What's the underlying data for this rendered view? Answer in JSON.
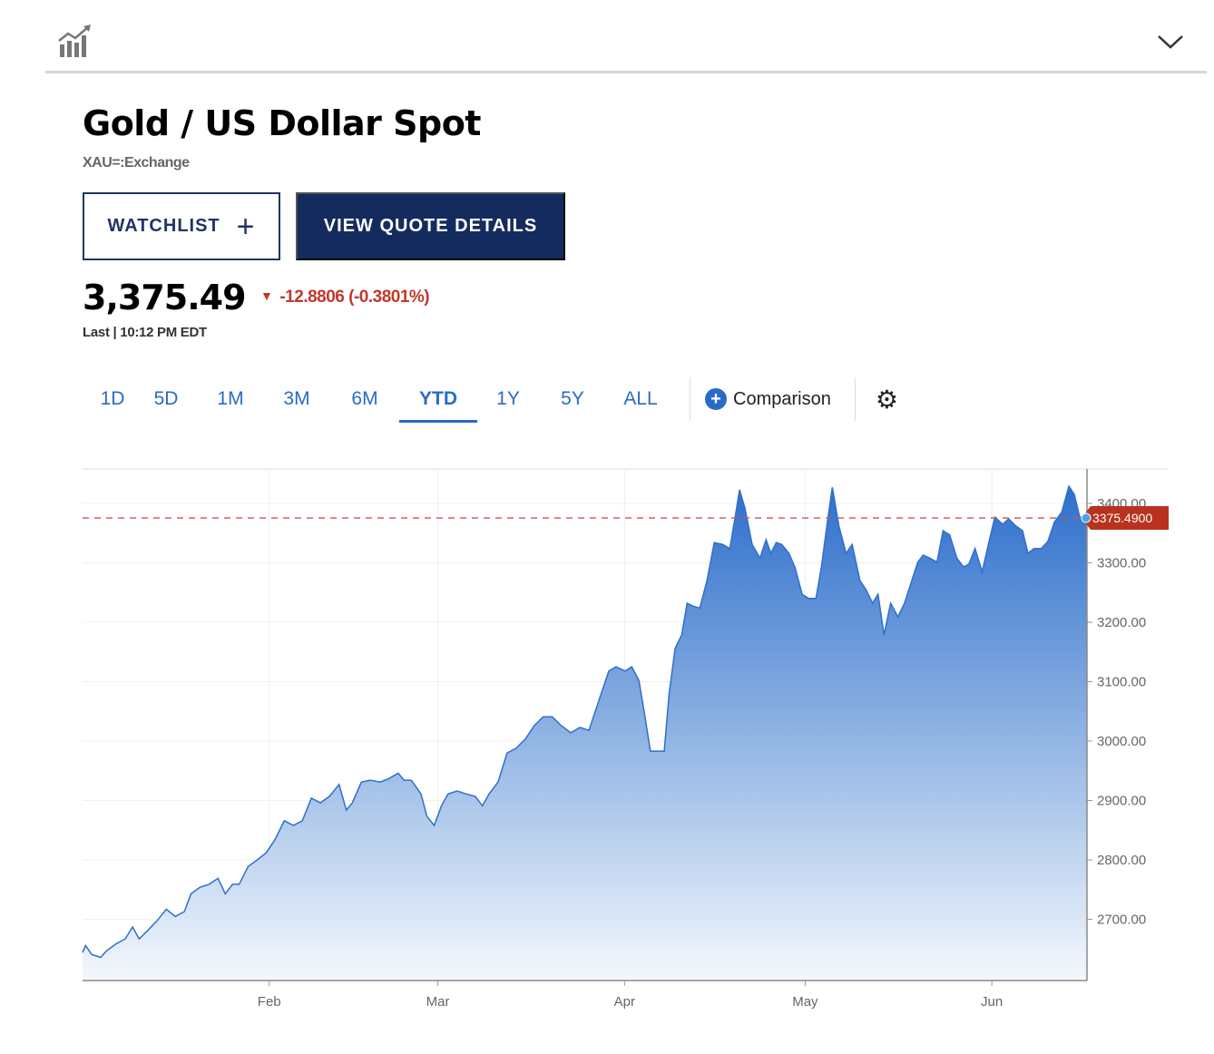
{
  "header": {
    "icon": "chart-growth-icon",
    "collapse_icon": "chevron-down-icon"
  },
  "quote": {
    "title": "Gold / US Dollar Spot",
    "symbol": "XAU=:Exchange",
    "watchlist_label": "WATCHLIST",
    "watchlist_plus": "+",
    "view_quote_label": "VIEW QUOTE DETAILS",
    "price": "3,375.49",
    "change_arrow": "▼",
    "change": "-12.8806 (-0.3801%)",
    "last_label": "Last | 10:12 PM EDT"
  },
  "tabs": [
    {
      "label": "1D"
    },
    {
      "label": "5D"
    },
    {
      "label": "1M"
    },
    {
      "label": "3M"
    },
    {
      "label": "6M"
    },
    {
      "label": "YTD",
      "active": true
    },
    {
      "label": "1Y"
    },
    {
      "label": "5Y"
    },
    {
      "label": "ALL"
    }
  ],
  "comparison": {
    "icon": "+",
    "label": "Comparison"
  },
  "settings": {
    "icon": "⚙"
  },
  "colors": {
    "accent": "#2a6ac7",
    "navy": "#142b5e",
    "down": "#c0392b",
    "area": "#3a7bd5"
  },
  "chart_data": {
    "type": "area",
    "title": "Gold / US Dollar Spot YTD",
    "xlabel": "",
    "ylabel": "",
    "x_unit": "day of year (0 = Jan 1)",
    "xlim": [
      0,
      166.8
    ],
    "ylim": [
      2597,
      3458
    ],
    "grid": true,
    "x_ticks": [
      {
        "label": "Feb",
        "x": 31
      },
      {
        "label": "Mar",
        "x": 59
      },
      {
        "label": "Apr",
        "x": 90
      },
      {
        "label": "May",
        "x": 120
      },
      {
        "label": "Jun",
        "x": 151
      }
    ],
    "y_ticks": [
      {
        "label": "3400.00",
        "y": 3400
      },
      {
        "label": "3300.00",
        "y": 3300
      },
      {
        "label": "3200.00",
        "y": 3200
      },
      {
        "label": "3100.00",
        "y": 3100
      },
      {
        "label": "3000.00",
        "y": 3000
      },
      {
        "label": "2900.00",
        "y": 2900
      },
      {
        "label": "2800.00",
        "y": 2800
      },
      {
        "label": "2700.00",
        "y": 2700
      }
    ],
    "last_value": 3375.49,
    "last_label": "3375.4900",
    "x": [
      0,
      0.5,
      1.5,
      3,
      4,
      5.6,
      7.1,
      8.3,
      9.4,
      10.9,
      12.4,
      13.9,
      15.4,
      16.9,
      18,
      19.5,
      21,
      22.5,
      23.7,
      24.9,
      26,
      27.5,
      29,
      30.5,
      32,
      33.5,
      35,
      36.5,
      38,
      39.5,
      41,
      42.6,
      43.8,
      44.8,
      46.3,
      47.8,
      49.4,
      50.9,
      52.4,
      53.4,
      54.6,
      56.2,
      57.2,
      58.4,
      59.6,
      60.7,
      62.2,
      63.7,
      65.2,
      66.4,
      67.5,
      69,
      70.5,
      72,
      73.5,
      75,
      76.5,
      78,
      79.5,
      81.1,
      82.6,
      84.1,
      85.6,
      87.4,
      88.6,
      90.1,
      91.2,
      92.4,
      93.4,
      94.3,
      96.6,
      97.4,
      98.4,
      99.5,
      100.4,
      101.4,
      102.5,
      103.7,
      104.9,
      106.3,
      107.5,
      108.5,
      109.1,
      110,
      111.2,
      112.5,
      113.5,
      114.3,
      115.2,
      116.1,
      117.3,
      118.3,
      119.5,
      120.6,
      121.8,
      122.7,
      123.6,
      124.5,
      125.6,
      126.8,
      127.8,
      129.1,
      130.1,
      131.2,
      132.1,
      133.1,
      134.2,
      135.4,
      136.5,
      137.7,
      138.7,
      139.6,
      140.7,
      141.9,
      142.9,
      144,
      145.2,
      146.3,
      147.2,
      148.2,
      149.4,
      150.5,
      151.5,
      152.8,
      153.8,
      155,
      156.1,
      157,
      158,
      159.2,
      160.3,
      161.4,
      162.6,
      163.8,
      164.7,
      165.6,
      166.8
    ],
    "y": [
      2644,
      2656,
      2641,
      2636,
      2647,
      2659,
      2667,
      2687,
      2667,
      2682,
      2698,
      2717,
      2705,
      2713,
      2743,
      2754,
      2759,
      2769,
      2743,
      2759,
      2759,
      2789,
      2800,
      2812,
      2835,
      2866,
      2858,
      2866,
      2904,
      2896,
      2907,
      2927,
      2884,
      2896,
      2931,
      2934,
      2931,
      2937,
      2946,
      2934,
      2934,
      2911,
      2873,
      2858,
      2891,
      2911,
      2916,
      2911,
      2907,
      2891,
      2911,
      2931,
      2980,
      2988,
      3003,
      3026,
      3041,
      3041,
      3026,
      3014,
      3023,
      3018,
      3064,
      3118,
      3125,
      3118,
      3125,
      3102,
      3041,
      2983,
      2983,
      3079,
      3156,
      3179,
      3232,
      3227,
      3224,
      3270,
      3334,
      3331,
      3324,
      3385,
      3423,
      3392,
      3331,
      3308,
      3339,
      3316,
      3334,
      3331,
      3316,
      3293,
      3247,
      3240,
      3240,
      3293,
      3362,
      3427,
      3362,
      3316,
      3331,
      3270,
      3255,
      3232,
      3247,
      3179,
      3232,
      3209,
      3232,
      3270,
      3301,
      3313,
      3308,
      3301,
      3354,
      3347,
      3308,
      3293,
      3298,
      3324,
      3285,
      3334,
      3377,
      3365,
      3374,
      3362,
      3354,
      3316,
      3324,
      3324,
      3336,
      3369,
      3385,
      3429,
      3415,
      3377,
      3377
    ]
  }
}
